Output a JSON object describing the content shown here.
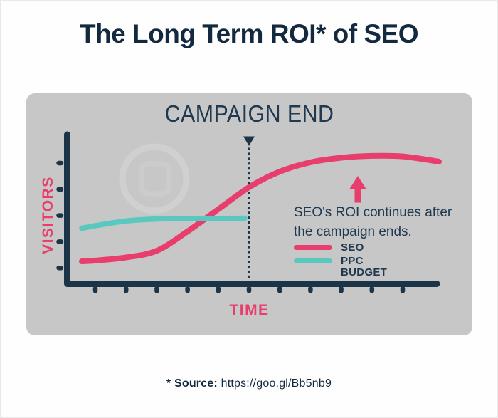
{
  "page": {
    "title": "The Long Term ROI* of SEO",
    "source_label": "* Source:",
    "source_url": "https://goo.gl/Bb5nb9"
  },
  "chart": {
    "campaign_end_label": "CAMPAIGN END",
    "y_axis_label": "VISITORS",
    "x_axis_label": "TIME",
    "annotation_line1": "SEO's ROI continues after",
    "annotation_line2": "the campaign ends.",
    "legend": [
      {
        "label": "SEO",
        "lines": [
          "SEO"
        ],
        "color": "#E83E6E"
      },
      {
        "label": "PPC BUDGET",
        "lines": [
          "PPC",
          "BUDGET"
        ],
        "color": "#59C8BF"
      }
    ]
  },
  "colors": {
    "title_ink": "#13293F",
    "ink": "#1B3448",
    "text_ink": "#20394F",
    "pink": "#E83E6E",
    "teal": "#59C8BF",
    "panel_gray": "#C7C7C7"
  },
  "chart_data": {
    "type": "line",
    "title": "The Long Term ROI* of SEO",
    "xlabel": "TIME",
    "ylabel": "VISITORS",
    "x_tick_count": 11,
    "y_tick_count": 5,
    "xlim": [
      -0.5,
      11.2
    ],
    "ylim": [
      0,
      100
    ],
    "grid": false,
    "legend_position": "right-middle",
    "campaign_end_x": 5,
    "series": [
      {
        "name": "SEO",
        "color": "#E83E6E",
        "x": [
          -0.44,
          0,
          1,
          2,
          3,
          4,
          5,
          6,
          7,
          8,
          9,
          10,
          11.18
        ],
        "y": [
          15.0,
          15.5,
          17.6,
          22.1,
          35.0,
          49.8,
          64.5,
          75.0,
          81.2,
          84.3,
          85.5,
          85.2,
          81.7
        ]
      },
      {
        "name": "PPC BUDGET",
        "color": "#59C8BF",
        "x": [
          -0.44,
          0,
          1,
          2,
          3,
          4,
          4.86
        ],
        "y": [
          37.1,
          38.8,
          42.0,
          43.3,
          43.6,
          43.6,
          43.8
        ]
      }
    ],
    "annotations": [
      {
        "text": "CAMPAIGN END",
        "type": "marker-line",
        "x": 5
      },
      {
        "text": "SEO's ROI continues after the campaign ends.",
        "type": "arrow-up",
        "x": 8.5
      }
    ]
  }
}
